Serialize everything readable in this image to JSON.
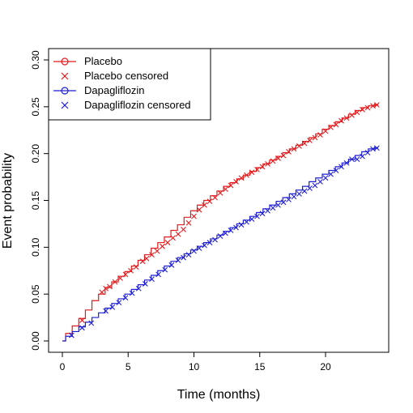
{
  "chart_data": {
    "type": "line",
    "xlabel": "Time (months)",
    "ylabel": "Event probability",
    "xlim": [
      0,
      24
    ],
    "ylim": [
      0,
      0.3
    ],
    "xticks": [
      0,
      5,
      10,
      15,
      20
    ],
    "yticks": [
      0.0,
      0.05,
      0.1,
      0.15,
      0.2,
      0.25,
      0.3
    ],
    "grid": false,
    "legend_position": "top-left",
    "legend": [
      {
        "label": "Placebo",
        "style": "line-circle",
        "color": "#e41a1c"
      },
      {
        "label": "Placebo censored",
        "style": "cross",
        "color": "#e41a1c"
      },
      {
        "label": "Dapagliflozin",
        "style": "line-circle",
        "color": "#1f1fd6"
      },
      {
        "label": "Dapagliflozin censored",
        "style": "cross",
        "color": "#1f1fd6"
      }
    ],
    "series": [
      {
        "name": "Placebo",
        "color": "#e41a1c",
        "x": [
          0,
          0.5,
          1,
          1.5,
          2,
          2.5,
          3,
          3.5,
          4,
          4.5,
          5,
          5.5,
          6,
          6.5,
          7,
          7.5,
          8,
          8.5,
          9,
          9.5,
          10,
          10.5,
          11,
          11.5,
          12,
          12.5,
          13,
          13.5,
          14,
          14.5,
          15,
          15.5,
          16,
          16.5,
          17,
          17.5,
          18,
          18.5,
          19,
          19.5,
          20,
          20.5,
          21,
          21.5,
          22,
          22.5,
          23,
          23.5,
          24
        ],
        "y": [
          0,
          0.008,
          0.016,
          0.024,
          0.033,
          0.043,
          0.05,
          0.057,
          0.063,
          0.069,
          0.074,
          0.08,
          0.086,
          0.092,
          0.099,
          0.105,
          0.111,
          0.118,
          0.124,
          0.132,
          0.139,
          0.145,
          0.15,
          0.155,
          0.16,
          0.165,
          0.169,
          0.173,
          0.177,
          0.181,
          0.185,
          0.189,
          0.193,
          0.197,
          0.201,
          0.205,
          0.209,
          0.213,
          0.217,
          0.221,
          0.226,
          0.23,
          0.234,
          0.238,
          0.242,
          0.246,
          0.249,
          0.251,
          0.252
        ]
      },
      {
        "name": "Dapagliflozin",
        "color": "#1f1fd6",
        "x": [
          0,
          0.5,
          1,
          1.5,
          2,
          2.5,
          3,
          3.5,
          4,
          4.5,
          5,
          5.5,
          6,
          6.5,
          7,
          7.5,
          8,
          8.5,
          9,
          9.5,
          10,
          10.5,
          11,
          11.5,
          12,
          12.5,
          13,
          13.5,
          14,
          14.5,
          15,
          15.5,
          16,
          16.5,
          17,
          17.5,
          18,
          18.5,
          19,
          19.5,
          20,
          20.5,
          21,
          21.5,
          22,
          22.5,
          23,
          23.5,
          24
        ],
        "y": [
          0,
          0.005,
          0.01,
          0.015,
          0.02,
          0.025,
          0.03,
          0.035,
          0.04,
          0.045,
          0.05,
          0.055,
          0.06,
          0.065,
          0.07,
          0.075,
          0.08,
          0.085,
          0.089,
          0.093,
          0.097,
          0.101,
          0.105,
          0.109,
          0.113,
          0.117,
          0.121,
          0.125,
          0.129,
          0.133,
          0.137,
          0.141,
          0.145,
          0.149,
          0.153,
          0.157,
          0.161,
          0.165,
          0.17,
          0.174,
          0.178,
          0.182,
          0.186,
          0.19,
          0.194,
          0.198,
          0.202,
          0.205,
          0.206
        ]
      }
    ],
    "censored": [
      {
        "name": "Placebo censored",
        "color": "#e41a1c",
        "x": [
          1.5,
          3,
          3.3,
          3.6,
          4,
          4.4,
          4.8,
          5.2,
          5.6,
          6.1,
          6.4,
          6.8,
          7.2,
          7.6,
          8.0,
          8.4,
          8.8,
          9.2,
          9.6,
          10.0,
          10.4,
          10.8,
          11.2,
          11.6,
          12.0,
          12.4,
          12.8,
          13.2,
          13.6,
          14.0,
          14.4,
          14.8,
          15.2,
          15.6,
          16.0,
          16.4,
          16.8,
          17.2,
          17.6,
          18.0,
          18.4,
          18.8,
          19.2,
          19.6,
          20.0,
          20.4,
          20.8,
          21.2,
          21.6,
          22.0,
          22.4,
          22.8,
          23.2,
          23.6,
          23.9
        ],
        "y": [
          0.022,
          0.052,
          0.056,
          0.058,
          0.063,
          0.067,
          0.071,
          0.075,
          0.079,
          0.085,
          0.088,
          0.092,
          0.096,
          0.101,
          0.105,
          0.11,
          0.114,
          0.119,
          0.126,
          0.133,
          0.14,
          0.145,
          0.149,
          0.153,
          0.158,
          0.162,
          0.166,
          0.17,
          0.174,
          0.177,
          0.18,
          0.183,
          0.186,
          0.189,
          0.192,
          0.195,
          0.198,
          0.202,
          0.205,
          0.208,
          0.211,
          0.214,
          0.217,
          0.22,
          0.224,
          0.228,
          0.231,
          0.235,
          0.238,
          0.241,
          0.244,
          0.247,
          0.249,
          0.251,
          0.252
        ]
      },
      {
        "name": "Dapagliflozin censored",
        "color": "#1f1fd6",
        "x": [
          0.7,
          1.5,
          2.2,
          3.3,
          3.8,
          4.3,
          4.8,
          5.3,
          5.8,
          6.3,
          6.8,
          7.3,
          7.8,
          8.3,
          8.8,
          9.2,
          9.6,
          10.0,
          10.4,
          10.8,
          11.2,
          11.6,
          12.0,
          12.4,
          12.8,
          13.2,
          13.6,
          14.0,
          14.4,
          14.8,
          15.2,
          15.6,
          16.0,
          16.4,
          16.8,
          17.2,
          17.6,
          18.0,
          18.4,
          18.8,
          19.2,
          19.6,
          20.0,
          20.4,
          20.8,
          21.2,
          21.6,
          22.0,
          22.4,
          22.8,
          23.2,
          23.6,
          23.9
        ],
        "y": [
          0.006,
          0.014,
          0.019,
          0.032,
          0.036,
          0.041,
          0.046,
          0.051,
          0.056,
          0.061,
          0.066,
          0.071,
          0.076,
          0.081,
          0.086,
          0.089,
          0.092,
          0.096,
          0.099,
          0.102,
          0.105,
          0.108,
          0.112,
          0.115,
          0.118,
          0.121,
          0.124,
          0.127,
          0.13,
          0.133,
          0.136,
          0.139,
          0.142,
          0.145,
          0.148,
          0.151,
          0.154,
          0.157,
          0.16,
          0.163,
          0.166,
          0.17,
          0.174,
          0.178,
          0.182,
          0.186,
          0.19,
          0.194,
          0.194,
          0.197,
          0.201,
          0.205,
          0.206
        ]
      }
    ]
  }
}
